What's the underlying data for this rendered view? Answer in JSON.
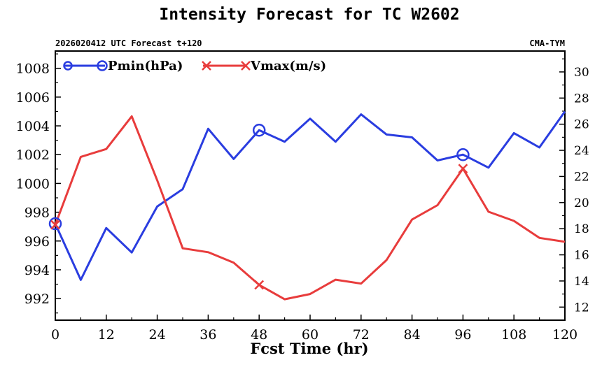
{
  "chart_data": {
    "type": "line",
    "title": "Intensity Forecast for TC W2602",
    "subtitle_left": "2026020412 UTC Forecast t+120",
    "subtitle_right": "CMA-TYM",
    "xlabel": "Fcst Time (hr)",
    "x": [
      0,
      6,
      12,
      18,
      24,
      30,
      36,
      42,
      48,
      54,
      60,
      66,
      72,
      78,
      84,
      90,
      96,
      102,
      108,
      114,
      120
    ],
    "xlim": [
      0,
      120
    ],
    "x_ticks": [
      0,
      12,
      24,
      36,
      48,
      60,
      72,
      84,
      96,
      108,
      120
    ],
    "x_tick_labels": [
      "0",
      "12",
      "24",
      "36",
      "48",
      "60",
      "72",
      "84",
      "96",
      "108",
      "120"
    ],
    "ylim_left": [
      990.5,
      1009.2
    ],
    "y_ticks_left": [
      992,
      994,
      996,
      998,
      1000,
      1002,
      1004,
      1006,
      1008
    ],
    "y_tick_labels_left": [
      "992",
      "994",
      "996",
      "998",
      "1000",
      "1002",
      "1004",
      "1006",
      "1008"
    ],
    "ylim_right": [
      11,
      31.6
    ],
    "y_ticks_right": [
      12,
      14,
      16,
      18,
      20,
      22,
      24,
      26,
      28,
      30
    ],
    "y_tick_labels_right": [
      "12",
      "14",
      "16",
      "18",
      "20",
      "22",
      "24",
      "26",
      "28",
      "30"
    ],
    "series": [
      {
        "name": "Pmin(hPa)",
        "axis": "left",
        "color": "#2a3de0",
        "marker": "circle",
        "marker_every": 8,
        "values": [
          997.2,
          993.3,
          996.9,
          995.2,
          998.4,
          999.6,
          1003.8,
          1001.7,
          1003.7,
          1002.9,
          1004.5,
          1002.9,
          1004.8,
          1003.4,
          1003.2,
          1001.6,
          1002.0,
          1001.1,
          1003.5,
          1002.5,
          1005.0
        ]
      },
      {
        "name": "Vmax(m/s)",
        "axis": "right",
        "color": "#e83c3c",
        "marker": "x",
        "marker_every": 8,
        "values": [
          18.3,
          23.5,
          24.1,
          26.6,
          21.7,
          16.5,
          16.2,
          15.4,
          13.7,
          12.6,
          13.0,
          14.1,
          13.8,
          15.6,
          18.7,
          19.8,
          22.6,
          19.3,
          18.6,
          17.3,
          17.0
        ]
      }
    ],
    "legend": "top-left"
  }
}
